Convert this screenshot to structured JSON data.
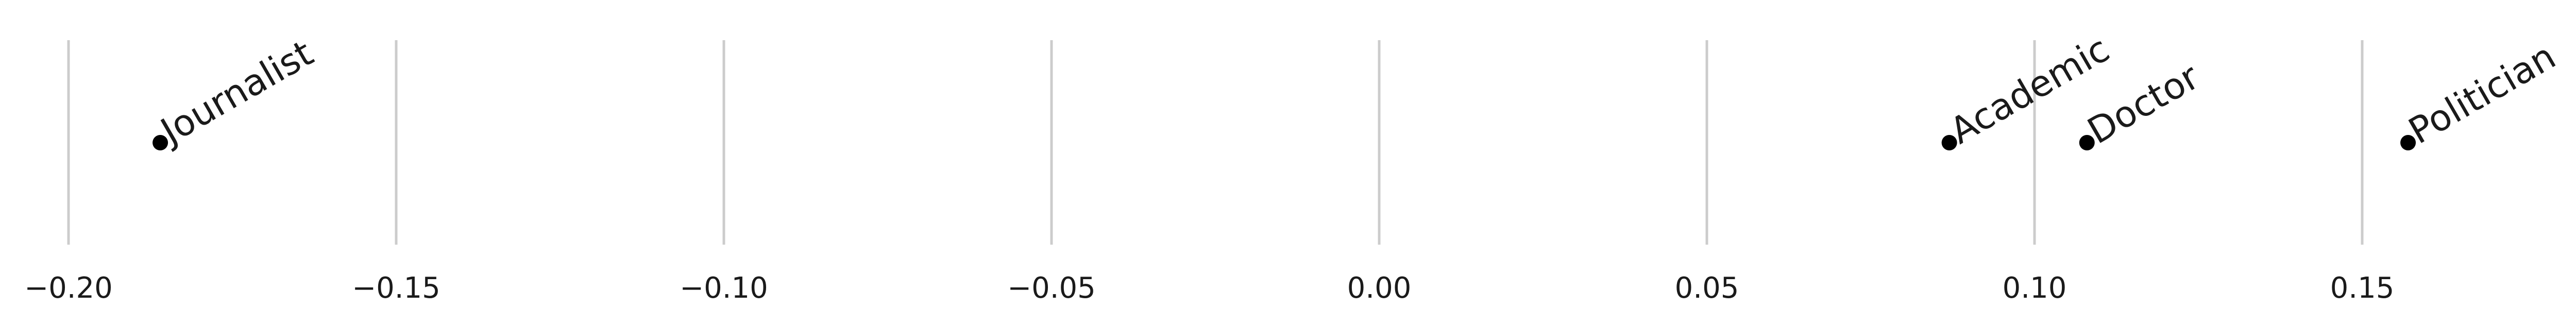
{
  "chart_data": {
    "type": "scatter",
    "points": [
      {
        "label": "Journalist",
        "x": -0.186
      },
      {
        "label": "Academic",
        "x": 0.087
      },
      {
        "label": "Doctor",
        "x": 0.108
      },
      {
        "label": "Politician",
        "x": 0.157
      }
    ],
    "xticks": [
      "−0.20",
      "−0.15",
      "−0.10",
      "−0.05",
      "0.00",
      "0.05",
      "0.10",
      "0.15"
    ],
    "xtick_values": [
      -0.2,
      -0.15,
      -0.1,
      -0.05,
      0.0,
      0.05,
      0.1,
      0.15
    ],
    "xlim": [
      -0.21,
      0.185
    ],
    "grid": "vertical",
    "title": "",
    "xlabel": "",
    "ylabel": "",
    "colors": {
      "point": "#000000",
      "grid": "#cccccc",
      "text": "#1a1a1a"
    }
  }
}
